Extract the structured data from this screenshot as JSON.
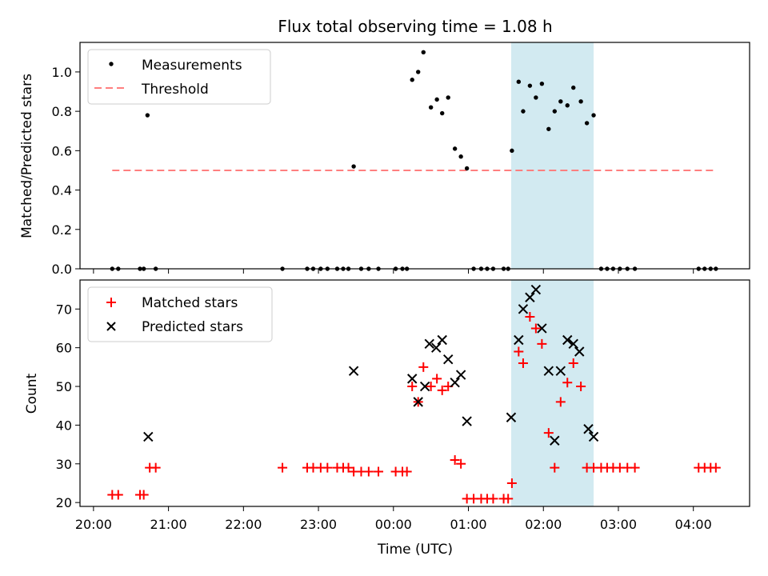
{
  "title": "Flux total observing time = 1.08 h",
  "colors": {
    "measurement": "#000000",
    "threshold": "#ff7f7f",
    "matched": "#ff0000",
    "predicted": "#000000",
    "highlight": "#add8e6"
  },
  "chart_data": [
    {
      "type": "scatter",
      "ylabel": "Matched/Predicted stars",
      "ylim": [
        0,
        1.15
      ],
      "yticks": [
        0.0,
        0.2,
        0.4,
        0.6,
        0.8,
        1.0
      ],
      "ytick_labels": [
        "0.0",
        "0.2",
        "0.4",
        "0.6",
        "0.8",
        "1.0"
      ],
      "xlim_hours": [
        19.82,
        28.75
      ],
      "highlight_span_hours": [
        25.57,
        26.67
      ],
      "legend": {
        "placement": "upper left",
        "entries": [
          "Measurements",
          "Threshold"
        ]
      },
      "threshold": {
        "name": "Threshold",
        "value": 0.5,
        "x_range_hours": [
          20.25,
          28.3
        ]
      },
      "series": [
        {
          "name": "Measurements",
          "marker": "dot",
          "points": [
            [
              20.25,
              0.0
            ],
            [
              20.33,
              0.0
            ],
            [
              20.62,
              0.0
            ],
            [
              20.67,
              0.0
            ],
            [
              20.72,
              0.78
            ],
            [
              20.83,
              0.0
            ],
            [
              22.52,
              0.0
            ],
            [
              22.85,
              0.0
            ],
            [
              22.93,
              0.0
            ],
            [
              23.03,
              0.0
            ],
            [
              23.12,
              0.0
            ],
            [
              23.25,
              0.0
            ],
            [
              23.33,
              0.0
            ],
            [
              23.4,
              0.0
            ],
            [
              23.47,
              0.52
            ],
            [
              23.57,
              0.0
            ],
            [
              23.67,
              0.0
            ],
            [
              23.8,
              0.0
            ],
            [
              24.03,
              0.0
            ],
            [
              24.12,
              0.0
            ],
            [
              24.18,
              0.0
            ],
            [
              24.25,
              0.96
            ],
            [
              24.33,
              1.0
            ],
            [
              24.4,
              1.1
            ],
            [
              24.5,
              0.82
            ],
            [
              24.58,
              0.86
            ],
            [
              24.65,
              0.79
            ],
            [
              24.73,
              0.87
            ],
            [
              24.82,
              0.61
            ],
            [
              24.9,
              0.57
            ],
            [
              24.98,
              0.51
            ],
            [
              25.07,
              0.0
            ],
            [
              25.17,
              0.0
            ],
            [
              25.25,
              0.0
            ],
            [
              25.33,
              0.0
            ],
            [
              25.47,
              0.0
            ],
            [
              25.53,
              0.0
            ],
            [
              25.58,
              0.6
            ],
            [
              25.67,
              0.95
            ],
            [
              25.73,
              0.8
            ],
            [
              25.82,
              0.93
            ],
            [
              25.9,
              0.87
            ],
            [
              25.98,
              0.94
            ],
            [
              26.07,
              0.71
            ],
            [
              26.15,
              0.8
            ],
            [
              26.23,
              0.85
            ],
            [
              26.32,
              0.83
            ],
            [
              26.4,
              0.92
            ],
            [
              26.5,
              0.85
            ],
            [
              26.58,
              0.74
            ],
            [
              26.67,
              0.78
            ],
            [
              26.77,
              0.0
            ],
            [
              26.85,
              0.0
            ],
            [
              26.93,
              0.0
            ],
            [
              27.02,
              0.0
            ],
            [
              27.12,
              0.0
            ],
            [
              27.22,
              0.0
            ],
            [
              28.07,
              0.0
            ],
            [
              28.15,
              0.0
            ],
            [
              28.23,
              0.0
            ],
            [
              28.3,
              0.0
            ]
          ]
        }
      ]
    },
    {
      "type": "scatter",
      "ylabel": "Count",
      "xlabel": "Time (UTC)",
      "ylim": [
        19,
        77.5
      ],
      "yticks": [
        20,
        30,
        40,
        50,
        60,
        70
      ],
      "ytick_labels": [
        "20",
        "30",
        "40",
        "50",
        "60",
        "70"
      ],
      "xlim_hours": [
        19.82,
        28.75
      ],
      "xticks_hours": [
        20,
        21,
        22,
        23,
        24,
        25,
        26,
        27,
        28
      ],
      "xtick_labels": [
        "20:00",
        "21:00",
        "22:00",
        "23:00",
        "00:00",
        "01:00",
        "02:00",
        "03:00",
        "04:00"
      ],
      "highlight_span_hours": [
        25.57,
        26.67
      ],
      "legend": {
        "placement": "upper left",
        "entries": [
          "Matched stars",
          "Predicted stars"
        ]
      },
      "series": [
        {
          "name": "Matched stars",
          "marker": "plus",
          "points": [
            [
              20.25,
              22
            ],
            [
              20.33,
              22
            ],
            [
              20.62,
              22
            ],
            [
              20.67,
              22
            ],
            [
              20.75,
              29
            ],
            [
              20.83,
              29
            ],
            [
              22.52,
              29
            ],
            [
              22.85,
              29
            ],
            [
              22.93,
              29
            ],
            [
              23.03,
              29
            ],
            [
              23.12,
              29
            ],
            [
              23.25,
              29
            ],
            [
              23.33,
              29
            ],
            [
              23.4,
              29
            ],
            [
              23.47,
              28
            ],
            [
              23.57,
              28
            ],
            [
              23.67,
              28
            ],
            [
              23.8,
              28
            ],
            [
              24.03,
              28
            ],
            [
              24.12,
              28
            ],
            [
              24.18,
              28
            ],
            [
              24.25,
              50
            ],
            [
              24.33,
              46
            ],
            [
              24.4,
              55
            ],
            [
              24.5,
              50
            ],
            [
              24.58,
              52
            ],
            [
              24.65,
              49
            ],
            [
              24.73,
              50
            ],
            [
              24.82,
              31
            ],
            [
              24.9,
              30
            ],
            [
              24.98,
              21
            ],
            [
              25.07,
              21
            ],
            [
              25.17,
              21
            ],
            [
              25.25,
              21
            ],
            [
              25.33,
              21
            ],
            [
              25.47,
              21
            ],
            [
              25.53,
              21
            ],
            [
              25.58,
              25
            ],
            [
              25.67,
              59
            ],
            [
              25.73,
              56
            ],
            [
              25.82,
              68
            ],
            [
              25.9,
              65
            ],
            [
              25.98,
              61
            ],
            [
              26.07,
              38
            ],
            [
              26.15,
              29
            ],
            [
              26.23,
              46
            ],
            [
              26.32,
              51
            ],
            [
              26.4,
              56
            ],
            [
              26.5,
              50
            ],
            [
              26.58,
              29
            ],
            [
              26.67,
              29
            ],
            [
              26.77,
              29
            ],
            [
              26.85,
              29
            ],
            [
              26.93,
              29
            ],
            [
              27.02,
              29
            ],
            [
              27.12,
              29
            ],
            [
              27.22,
              29
            ],
            [
              28.07,
              29
            ],
            [
              28.15,
              29
            ],
            [
              28.23,
              29
            ],
            [
              28.3,
              29
            ]
          ]
        },
        {
          "name": "Predicted stars",
          "marker": "cross",
          "points": [
            [
              20.73,
              37
            ],
            [
              23.47,
              54
            ],
            [
              24.25,
              52
            ],
            [
              24.33,
              46
            ],
            [
              24.42,
              50
            ],
            [
              24.48,
              61
            ],
            [
              24.57,
              60
            ],
            [
              24.65,
              62
            ],
            [
              24.73,
              57
            ],
            [
              24.82,
              51
            ],
            [
              24.9,
              53
            ],
            [
              24.98,
              41
            ],
            [
              25.57,
              42
            ],
            [
              25.67,
              62
            ],
            [
              25.73,
              70
            ],
            [
              25.82,
              73
            ],
            [
              25.9,
              75
            ],
            [
              25.98,
              65
            ],
            [
              26.07,
              54
            ],
            [
              26.15,
              36
            ],
            [
              26.23,
              54
            ],
            [
              26.32,
              62
            ],
            [
              26.4,
              61
            ],
            [
              26.48,
              59
            ],
            [
              26.6,
              39
            ],
            [
              26.67,
              37
            ]
          ]
        }
      ]
    }
  ]
}
